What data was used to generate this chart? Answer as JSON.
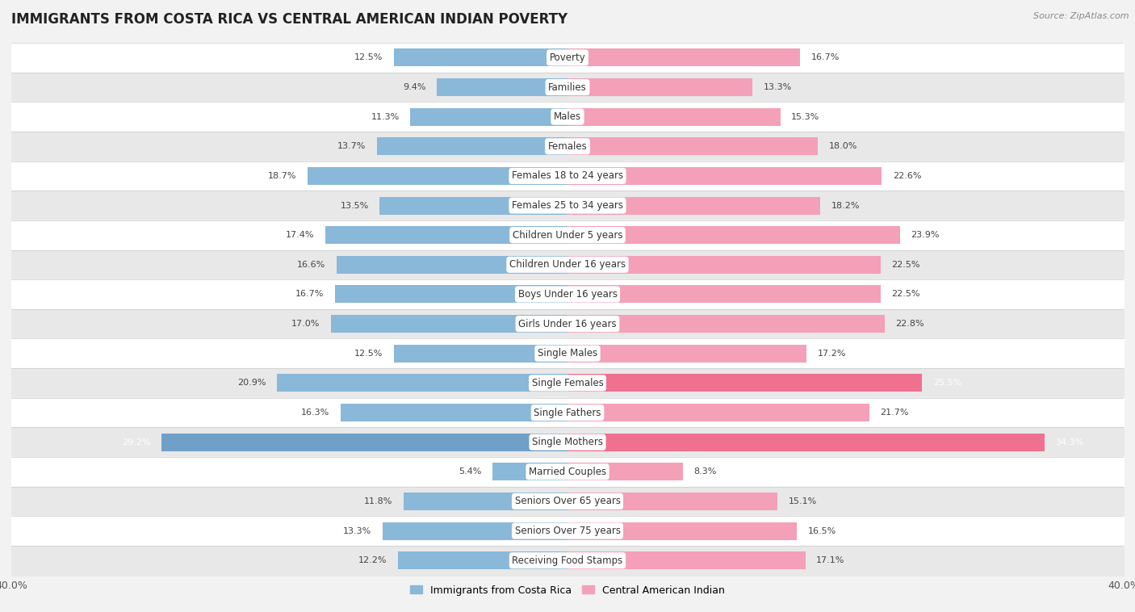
{
  "title": "IMMIGRANTS FROM COSTA RICA VS CENTRAL AMERICAN INDIAN POVERTY",
  "source": "Source: ZipAtlas.com",
  "categories": [
    "Poverty",
    "Families",
    "Males",
    "Females",
    "Females 18 to 24 years",
    "Females 25 to 34 years",
    "Children Under 5 years",
    "Children Under 16 years",
    "Boys Under 16 years",
    "Girls Under 16 years",
    "Single Males",
    "Single Females",
    "Single Fathers",
    "Single Mothers",
    "Married Couples",
    "Seniors Over 65 years",
    "Seniors Over 75 years",
    "Receiving Food Stamps"
  ],
  "left_values": [
    12.5,
    9.4,
    11.3,
    13.7,
    18.7,
    13.5,
    17.4,
    16.6,
    16.7,
    17.0,
    12.5,
    20.9,
    16.3,
    29.2,
    5.4,
    11.8,
    13.3,
    12.2
  ],
  "right_values": [
    16.7,
    13.3,
    15.3,
    18.0,
    22.6,
    18.2,
    23.9,
    22.5,
    22.5,
    22.8,
    17.2,
    25.5,
    21.7,
    34.3,
    8.3,
    15.1,
    16.5,
    17.1
  ],
  "left_color": "#8ab8d8",
  "right_color": "#f4a0b8",
  "highlight_left_color": "#6fa0c8",
  "highlight_right_color": "#f07090",
  "highlight_rows": [
    13
  ],
  "semi_highlight_rows": [
    11
  ],
  "background_color": "#f2f2f2",
  "row_white_color": "#ffffff",
  "row_gray_color": "#e8e8e8",
  "axis_limit": 40.0,
  "legend_left": "Immigrants from Costa Rica",
  "legend_right": "Central American Indian",
  "title_fontsize": 12,
  "label_fontsize": 8.5,
  "value_fontsize": 8
}
